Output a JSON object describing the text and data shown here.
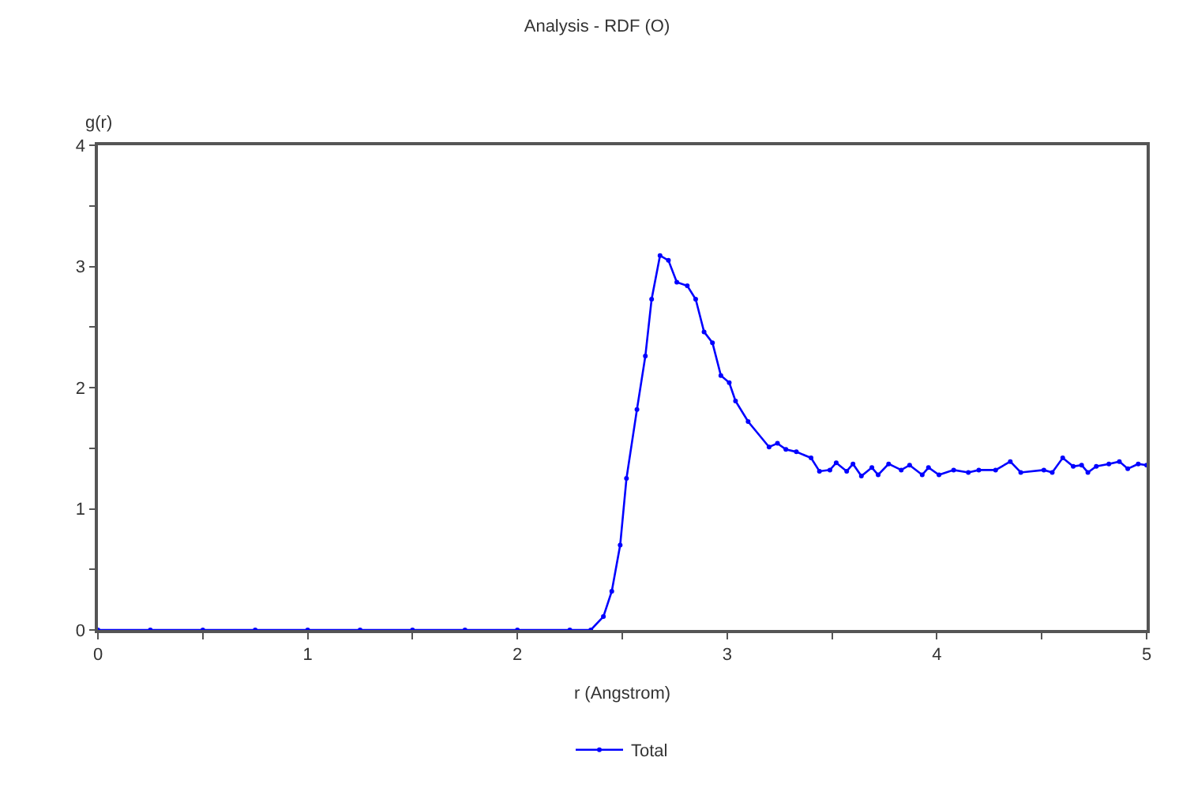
{
  "chart_data": {
    "type": "line",
    "title": "Analysis - RDF (O)",
    "xlabel": "r (Angstrom)",
    "ylabel": "g(r)",
    "xlim": [
      0,
      5
    ],
    "ylim": [
      0,
      4
    ],
    "xticks": [
      0,
      {
        "value": 0.5,
        "label": null
      },
      1,
      {
        "value": 1.5,
        "label": null
      },
      2,
      {
        "value": 2.5,
        "label": null
      },
      3,
      {
        "value": 3.5,
        "label": null
      },
      4,
      {
        "value": 4.5,
        "label": null
      },
      5
    ],
    "yticks": [
      0,
      {
        "value": 0.5,
        "label": null
      },
      1,
      {
        "value": 1.5,
        "label": null
      },
      2,
      {
        "value": 2.5,
        "label": null
      },
      3,
      {
        "value": 3.5,
        "label": null
      },
      4
    ],
    "legend": "bottom",
    "marker": "circle",
    "line_style": "solid",
    "series": [
      {
        "name": "Total",
        "color": "#0000ff",
        "x": [
          0,
          0.25,
          0.5,
          0.75,
          1,
          1.25,
          1.5,
          1.75,
          2,
          2.25,
          2.35,
          2.41,
          2.45,
          2.49,
          2.52,
          2.57,
          2.61,
          2.64,
          2.68,
          2.72,
          2.76,
          2.81,
          2.85,
          2.89,
          2.93,
          2.97,
          3.01,
          3.04,
          3.1,
          3.2,
          3.24,
          3.28,
          3.33,
          3.4,
          3.44,
          3.49,
          3.52,
          3.57,
          3.6,
          3.64,
          3.69,
          3.72,
          3.77,
          3.83,
          3.87,
          3.93,
          3.96,
          4.01,
          4.08,
          4.15,
          4.2,
          4.28,
          4.35,
          4.4,
          4.51,
          4.55,
          4.6,
          4.65,
          4.69,
          4.72,
          4.76,
          4.82,
          4.87,
          4.91,
          4.96,
          5
        ],
        "values": [
          0,
          0,
          0,
          0,
          0,
          0,
          0,
          0,
          0,
          0,
          0,
          0.11,
          0.32,
          0.7,
          1.25,
          1.82,
          2.26,
          2.73,
          3.09,
          3.05,
          2.87,
          2.84,
          2.73,
          2.46,
          2.37,
          2.1,
          2.04,
          1.89,
          1.72,
          1.51,
          1.54,
          1.49,
          1.47,
          1.42,
          1.31,
          1.32,
          1.38,
          1.31,
          1.37,
          1.27,
          1.34,
          1.28,
          1.37,
          1.32,
          1.36,
          1.28,
          1.34,
          1.28,
          1.32,
          1.3,
          1.32,
          1.32,
          1.39,
          1.3,
          1.32,
          1.3,
          1.42,
          1.35,
          1.36,
          1.3,
          1.35,
          1.37,
          1.39,
          1.33,
          1.37,
          1.36
        ]
      }
    ]
  }
}
